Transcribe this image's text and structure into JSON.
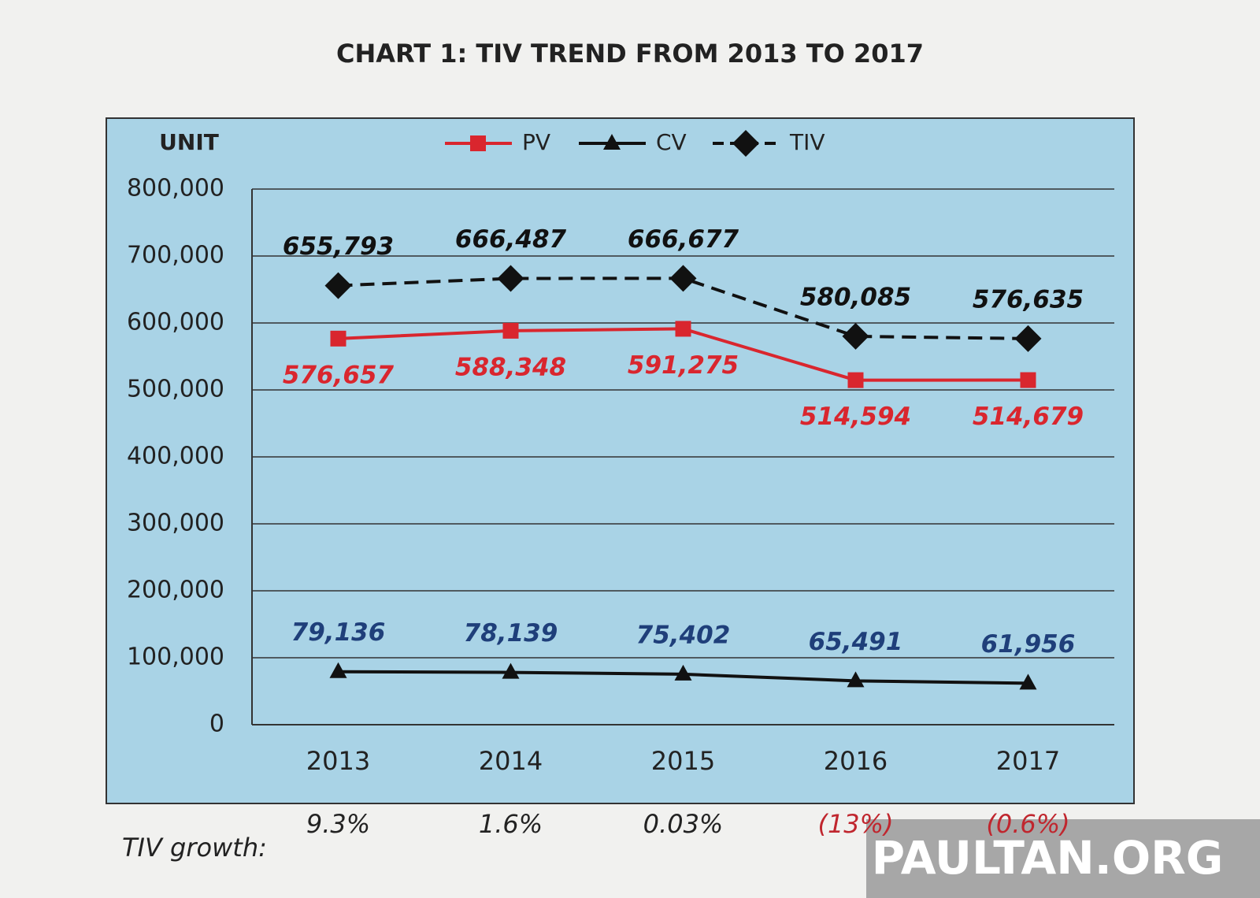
{
  "chart_data": {
    "type": "line",
    "title": "CHART 1: TIV TREND FROM 2013 TO 2017",
    "y_label": "UNIT",
    "categories": [
      "2013",
      "2014",
      "2015",
      "2016",
      "2017"
    ],
    "series": [
      {
        "name": "PV",
        "color": "#d9262e",
        "marker": "square",
        "dash": false,
        "label_color": "#d9262e",
        "label_position": "below",
        "values": [
          576657,
          588348,
          591275,
          514594,
          514679
        ],
        "value_labels": [
          "576,657",
          "588,348",
          "591,275",
          "514,594",
          "514,679"
        ]
      },
      {
        "name": "CV",
        "color": "#111111",
        "marker": "triangle",
        "dash": false,
        "label_color": "#1f3f7a",
        "label_position": "above",
        "values": [
          79136,
          78139,
          75402,
          65491,
          61956
        ],
        "value_labels": [
          "79,136",
          "78,139",
          "75,402",
          "65,491",
          "61,956"
        ]
      },
      {
        "name": "TIV",
        "color": "#111111",
        "marker": "diamond",
        "dash": true,
        "label_color": "#111111",
        "label_position": "above",
        "values": [
          655793,
          666487,
          666677,
          580085,
          576635
        ],
        "value_labels": [
          "655,793",
          "666,487",
          "666,677",
          "580,085",
          "576,635"
        ]
      }
    ],
    "ylim": [
      0,
      800000
    ],
    "yticks": [
      0,
      {
        "value": 100000,
        "label": "100,000"
      },
      {
        "value": 200000,
        "label": "200,000"
      },
      {
        "value": 300000,
        "label": "300,000"
      },
      {
        "value": 400000,
        "label": "400,000"
      },
      {
        "value": 500000,
        "label": "500,000"
      },
      {
        "value": 600000,
        "label": "600,000"
      },
      {
        "value": 700000,
        "label": "700,000"
      },
      {
        "value": 800000,
        "label": "800,000"
      }
    ],
    "grid": true,
    "legend": "top",
    "growth_title": "TIV growth:",
    "growth_labels": [
      "9.3%",
      "1.6%",
      "0.03%",
      "(13%)",
      "(0.6%)"
    ],
    "growth_colors": [
      "#222222",
      "#222222",
      "#222222",
      "#c0262e",
      "#c0262e"
    ],
    "watermark": "PAULTAN.ORG"
  }
}
